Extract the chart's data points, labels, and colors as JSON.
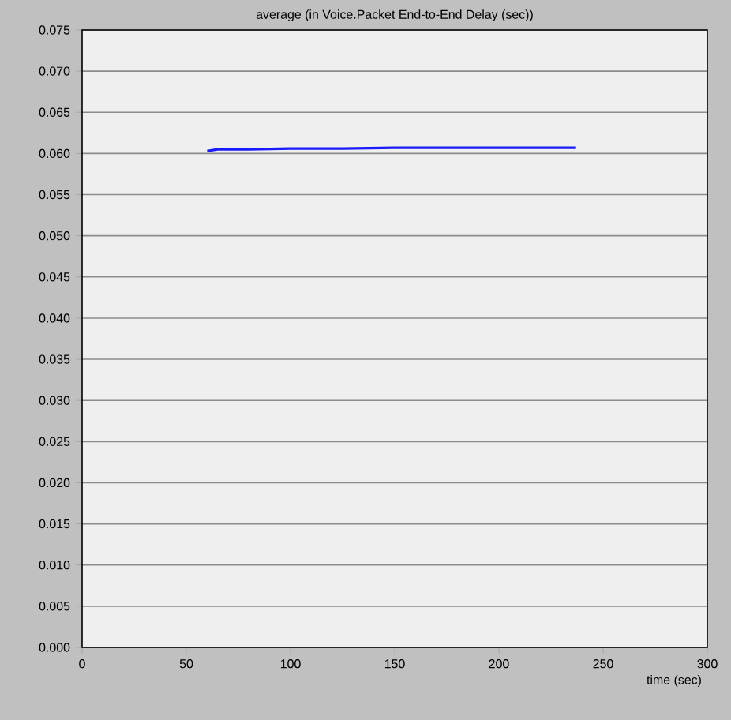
{
  "chart_data": {
    "type": "line",
    "title": "average (in Voice.Packet End-to-End Delay (sec))",
    "xlabel": "time (sec)",
    "x": [
      60,
      65,
      80,
      100,
      125,
      150,
      175,
      200,
      225,
      237
    ],
    "series": [
      {
        "color": "#1a1aff",
        "values": [
          0.0603,
          0.0605,
          0.0605,
          0.0606,
          0.0606,
          0.0607,
          0.0607,
          0.0607,
          0.0607,
          0.0607
        ]
      }
    ],
    "xlim": [
      0,
      300
    ],
    "xticks": [
      0,
      50,
      100,
      150,
      200,
      250,
      300
    ],
    "ylim": [
      0,
      0.075
    ],
    "yticks": [
      {
        "value": 0,
        "label": "0.000"
      },
      {
        "value": 0.005,
        "label": "0.005"
      },
      {
        "value": 0.01,
        "label": "0.010"
      },
      {
        "value": 0.015,
        "label": "0.015"
      },
      {
        "value": 0.02,
        "label": "0.020"
      },
      {
        "value": 0.025,
        "label": "0.025"
      },
      {
        "value": 0.03,
        "label": "0.030"
      },
      {
        "value": 0.035,
        "label": "0.035"
      },
      {
        "value": 0.04,
        "label": "0.040"
      },
      {
        "value": 0.045,
        "label": "0.045"
      },
      {
        "value": 0.05,
        "label": "0.050"
      },
      {
        "value": 0.055,
        "label": "0.055"
      },
      {
        "value": 0.06,
        "label": "0.060"
      },
      {
        "value": 0.065,
        "label": "0.065"
      },
      {
        "value": 0.07,
        "label": "0.070"
      },
      {
        "value": 0.075,
        "label": "0.075"
      }
    ],
    "grid": "y",
    "marker": "none",
    "line_style": "solid"
  }
}
